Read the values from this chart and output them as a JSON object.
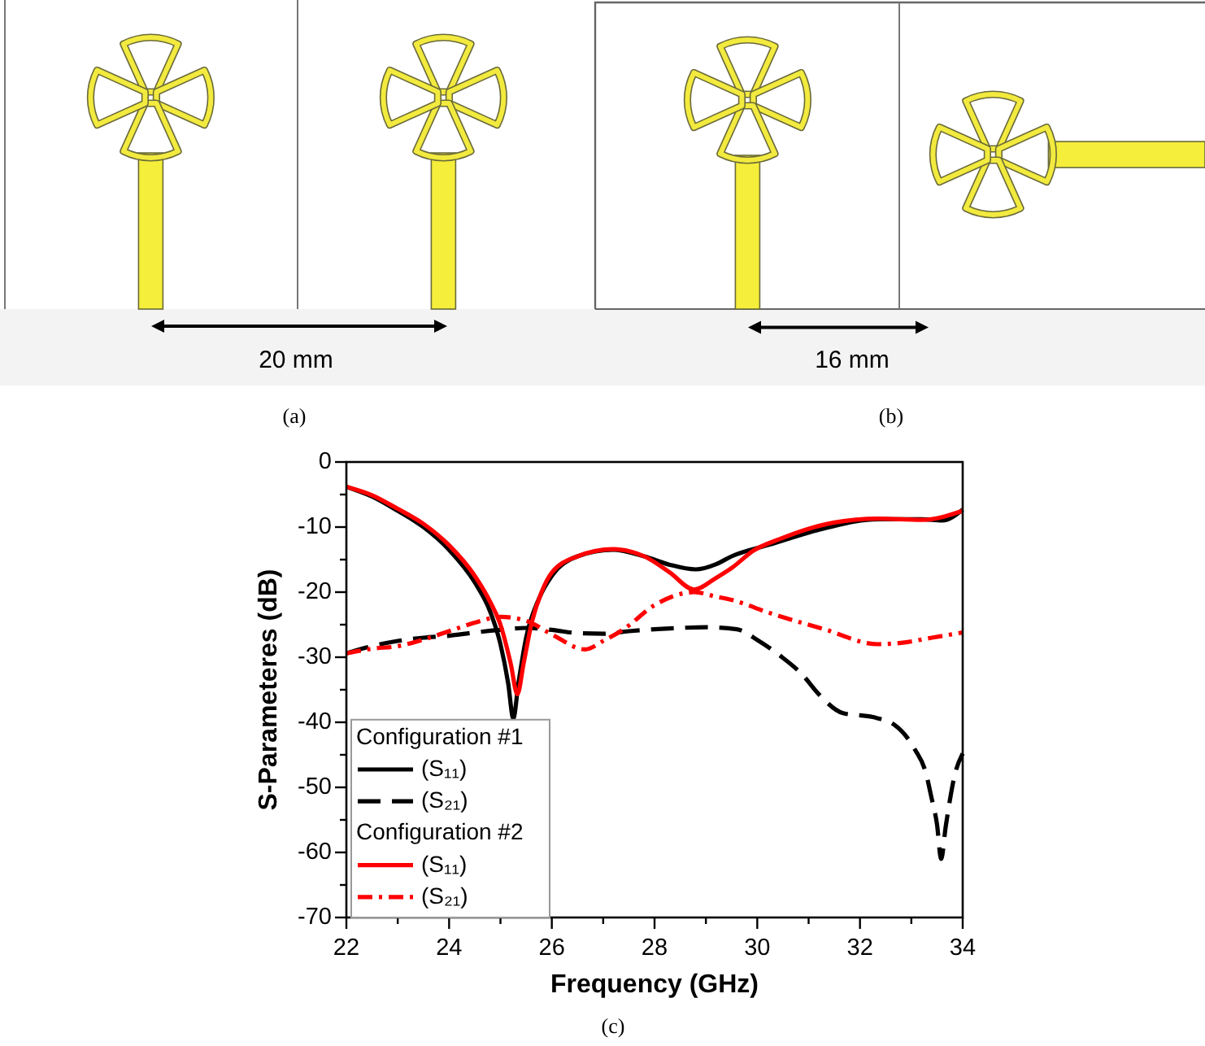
{
  "chart_data": {
    "type": "line",
    "xlabel": "Frequency (GHz)",
    "ylabel": "S-Parameteres (dB)",
    "xlim": [
      22,
      34
    ],
    "xticks": [
      22,
      {
        "value": 23,
        "label": null
      },
      24,
      {
        "value": 25,
        "label": null
      },
      26,
      {
        "value": 27,
        "label": null
      },
      28,
      {
        "value": 29,
        "label": null
      },
      30,
      {
        "value": 31,
        "label": null
      },
      32,
      {
        "value": 33,
        "label": null
      },
      34
    ],
    "ylim": [
      -70,
      0
    ],
    "yticks": [
      -70,
      {
        "value": -65,
        "label": null
      },
      -60,
      {
        "value": -55,
        "label": null
      },
      -50,
      {
        "value": -45,
        "label": null
      },
      -40,
      {
        "value": -35,
        "label": null
      },
      -30,
      {
        "value": -25,
        "label": null
      },
      -20,
      {
        "value": -15,
        "label": null
      },
      -10,
      {
        "value": -5,
        "label": null
      },
      0
    ],
    "legend": "bottom left",
    "annotations": [
      "20 mm",
      "(a)",
      "16 mm",
      "(b)",
      "(c)",
      "Configuration #1",
      "Configuration #2"
    ],
    "series": [
      {
        "name": "(S₁₁)",
        "color": "#000000",
        "line_style": "solid",
        "x": [
          22,
          22.5,
          23,
          23.5,
          24,
          24.5,
          24.8,
          25,
          25.15,
          25.25,
          25.35,
          25.5,
          25.75,
          26,
          26.5,
          27.2,
          27.8,
          28.3,
          28.8,
          29.2,
          29.5,
          30.24,
          31.3,
          32.35,
          33.2,
          33.6,
          34
        ],
        "values": [
          -3.8,
          -5.3,
          -7.5,
          -10,
          -13.5,
          -18.5,
          -23,
          -28,
          -34,
          -39.4,
          -34,
          -27,
          -21,
          -17.5,
          -14.5,
          -13.5,
          -14.5,
          -15.8,
          -16.5,
          -15.7,
          -14.5,
          -12.7,
          -10.2,
          -8.8,
          -8.8,
          -9,
          -7.3
        ]
      },
      {
        "name": "(S₂₁)",
        "color": "#000000",
        "line_style": "dashed",
        "x": [
          22,
          22.5,
          23,
          23.5,
          24,
          24.5,
          25,
          25.5,
          26,
          26.5,
          27,
          27.5,
          28,
          28.5,
          29,
          29.6,
          30.03,
          30.45,
          30.88,
          31.2,
          31.67,
          32.25,
          32.67,
          33.07,
          33.28,
          33.39,
          33.5,
          33.58,
          33.67,
          33.75,
          33.83,
          34
        ],
        "values": [
          -29.4,
          -28.3,
          -27.5,
          -27,
          -26.7,
          -26.2,
          -25.8,
          -25.5,
          -25.8,
          -26.3,
          -26.4,
          -26,
          -25.7,
          -25.5,
          -25.4,
          -25.7,
          -27.5,
          -29.8,
          -32.7,
          -35.7,
          -38.6,
          -39.2,
          -40.4,
          -44.2,
          -47.7,
          -51.5,
          -55.7,
          -61,
          -56,
          -52,
          -48.6,
          -44.8
        ]
      },
      {
        "name": "(S₁₁)",
        "color": "#ff0000",
        "line_style": "solid",
        "x": [
          22,
          22.5,
          23,
          23.5,
          24,
          24.5,
          24.8,
          25,
          25.2,
          25.33,
          25.45,
          25.6,
          25.8,
          26,
          26.5,
          27.2,
          27.8,
          28.3,
          28.77,
          29.2,
          29.5,
          29.93,
          30.45,
          30.98,
          31.5,
          32.35,
          33.2,
          34
        ],
        "values": [
          -3.8,
          -5.1,
          -7.2,
          -9.5,
          -12.8,
          -17.5,
          -21.5,
          -25,
          -31,
          -35.7,
          -31,
          -25,
          -20,
          -17,
          -14.5,
          -13.4,
          -14.5,
          -17,
          -19.6,
          -17.8,
          -16.3,
          -13.6,
          -11.8,
          -10.3,
          -9.3,
          -8.7,
          -8.9,
          -7.5
        ]
      },
      {
        "name": "(S₂₁)",
        "color": "#ff0000",
        "line_style": "dashdot",
        "x": [
          22,
          22.5,
          23,
          23.5,
          24,
          24.5,
          25,
          25.5,
          26,
          26.65,
          27,
          27.4,
          28,
          28.77,
          29.2,
          29.5,
          30.24,
          31.3,
          32.35,
          32.8,
          33.4,
          34
        ],
        "values": [
          -29.4,
          -28.7,
          -28.3,
          -27.3,
          -26,
          -24.7,
          -23.8,
          -24.4,
          -26.5,
          -28.8,
          -27.5,
          -25.7,
          -22,
          -20,
          -20.7,
          -21.2,
          -23.2,
          -25.7,
          -28,
          -27.8,
          -27,
          -26.2
        ]
      }
    ]
  }
}
